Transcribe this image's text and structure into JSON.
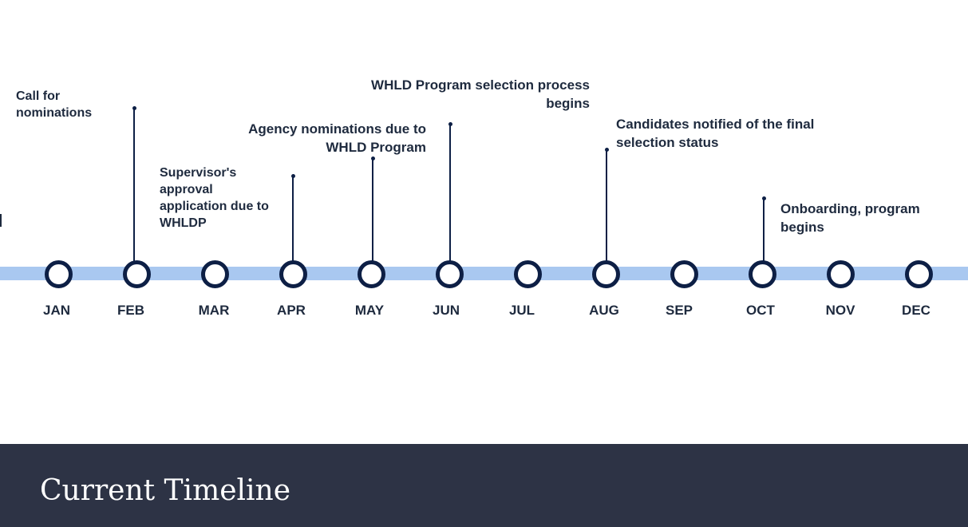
{
  "footer": {
    "title": "Current Timeline"
  },
  "months": [
    "JAN",
    "FEB",
    "MAR",
    "APR",
    "MAY",
    "JUN",
    "JUL",
    "AUG",
    "SEP",
    "OCT",
    "NOV",
    "DEC"
  ],
  "milestones": [
    {
      "month": "FEB",
      "text": "Call for\nnominations"
    },
    {
      "month": "APR",
      "text": "Supervisor's\napproval\napplication due to\nWHLDP"
    },
    {
      "month": "MAY",
      "text": "Agency nominations due to\nWHLD Program"
    },
    {
      "month": "JUN",
      "text": "WHLD Program selection process\nbegins"
    },
    {
      "month": "AUG",
      "text": "Candidates notified of the final\nselection status"
    },
    {
      "month": "OCT",
      "text": "Onboarding,  program\nbegins"
    }
  ],
  "colors": {
    "timeline_bar": "#a9c8f0",
    "node_ring": "#0d1f45",
    "footer_background": "#2d3345",
    "text": "#1e2a3e"
  }
}
